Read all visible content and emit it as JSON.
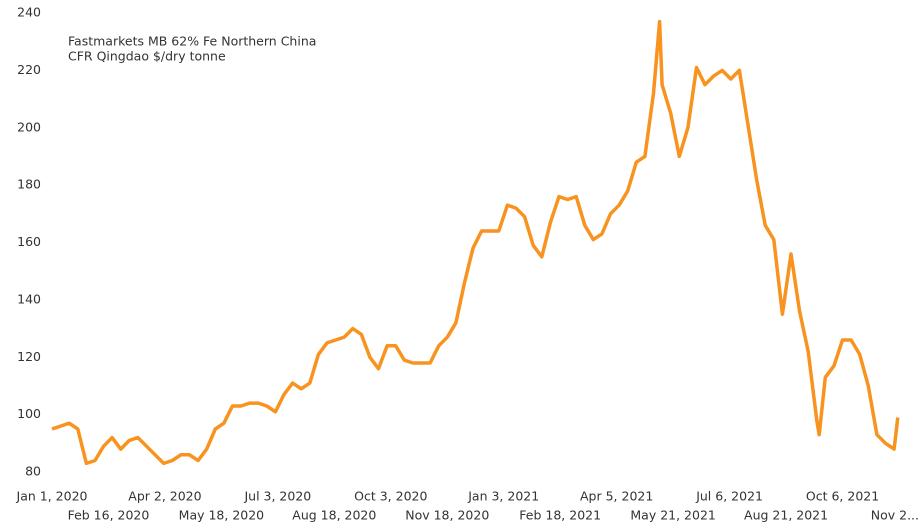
{
  "chart_data": {
    "type": "line",
    "annotation": [
      "Fastmarkets MB 62% Fe Northern China",
      "CFR Qingdao $/dry tonne"
    ],
    "x": [
      "2020-01-01",
      "2020-01-08",
      "2020-01-15",
      "2020-01-22",
      "2020-01-29",
      "2020-02-05",
      "2020-02-12",
      "2020-02-19",
      "2020-02-26",
      "2020-03-04",
      "2020-03-11",
      "2020-03-18",
      "2020-03-25",
      "2020-04-01",
      "2020-04-08",
      "2020-04-15",
      "2020-04-22",
      "2020-04-29",
      "2020-05-06",
      "2020-05-13",
      "2020-05-20",
      "2020-05-27",
      "2020-06-03",
      "2020-06-10",
      "2020-06-17",
      "2020-06-24",
      "2020-07-01",
      "2020-07-08",
      "2020-07-15",
      "2020-07-22",
      "2020-07-29",
      "2020-08-05",
      "2020-08-12",
      "2020-08-19",
      "2020-08-26",
      "2020-09-02",
      "2020-09-09",
      "2020-09-16",
      "2020-09-23",
      "2020-09-30",
      "2020-10-07",
      "2020-10-14",
      "2020-10-21",
      "2020-10-28",
      "2020-11-04",
      "2020-11-11",
      "2020-11-18",
      "2020-11-25",
      "2020-12-02",
      "2020-12-09",
      "2020-12-16",
      "2020-12-23",
      "2020-12-30",
      "2021-01-06",
      "2021-01-13",
      "2021-01-20",
      "2021-01-27",
      "2021-02-03",
      "2021-02-10",
      "2021-02-17",
      "2021-02-24",
      "2021-03-03",
      "2021-03-10",
      "2021-03-17",
      "2021-03-24",
      "2021-03-31",
      "2021-04-07",
      "2021-04-14",
      "2021-04-21",
      "2021-04-28",
      "2021-05-05",
      "2021-05-10",
      "2021-05-12",
      "2021-05-19",
      "2021-05-26",
      "2021-06-02",
      "2021-06-09",
      "2021-06-16",
      "2021-06-23",
      "2021-06-30",
      "2021-07-07",
      "2021-07-14",
      "2021-07-21",
      "2021-07-28",
      "2021-08-04",
      "2021-08-11",
      "2021-08-18",
      "2021-08-25",
      "2021-09-01",
      "2021-09-08",
      "2021-09-15",
      "2021-09-17",
      "2021-09-22",
      "2021-09-29",
      "2021-10-06",
      "2021-10-13",
      "2021-10-20",
      "2021-10-27",
      "2021-11-03",
      "2021-11-10",
      "2021-11-17",
      "2021-11-20"
    ],
    "series": [
      {
        "color": "#f7931e",
        "values": [
          95,
          96,
          97,
          95,
          83,
          84,
          89,
          92,
          88,
          91,
          92,
          89,
          86,
          83,
          84,
          86,
          86,
          84,
          88,
          95,
          97,
          103,
          103,
          104,
          104,
          103,
          101,
          107,
          111,
          109,
          111,
          121,
          125,
          126,
          127,
          130,
          128,
          120,
          116,
          124,
          124,
          119,
          118,
          118,
          118,
          124,
          127,
          132,
          146,
          158,
          164,
          164,
          164,
          173,
          172,
          169,
          159,
          155,
          167,
          176,
          175,
          176,
          166,
          161,
          163,
          170,
          173,
          178,
          188,
          190,
          212,
          237,
          215,
          205,
          190,
          200,
          221,
          215,
          218,
          220,
          217,
          220,
          201,
          182,
          166,
          161,
          135,
          156,
          136,
          122,
          98,
          93,
          113,
          117,
          126,
          126,
          121,
          110,
          93,
          90,
          88,
          99
        ]
      }
    ],
    "xlim": [
      "2020-01-01",
      "2021-11-21"
    ],
    "xticks": [
      {
        "value": "2020-01-01",
        "label": "Jan 1, 2020"
      },
      {
        "value": "2020-02-16",
        "label": "Feb 16, 2020"
      },
      {
        "value": "2020-04-02",
        "label": "Apr 2, 2020"
      },
      {
        "value": "2020-05-18",
        "label": "May 18, 2020"
      },
      {
        "value": "2020-07-03",
        "label": "Jul 3, 2020"
      },
      {
        "value": "2020-08-18",
        "label": "Aug 18, 2020"
      },
      {
        "value": "2020-10-03",
        "label": "Oct 3, 2020"
      },
      {
        "value": "2020-11-18",
        "label": "Nov 18, 2020"
      },
      {
        "value": "2021-01-03",
        "label": "Jan 3, 2021"
      },
      {
        "value": "2021-02-18",
        "label": "Feb 18, 2021"
      },
      {
        "value": "2021-04-05",
        "label": "Apr 5, 2021"
      },
      {
        "value": "2021-05-21",
        "label": "May 21, 2021"
      },
      {
        "value": "2021-07-06",
        "label": "Jul 6, 2021"
      },
      {
        "value": "2021-08-21",
        "label": "Aug 21, 2021"
      },
      {
        "value": "2021-10-06",
        "label": "Oct 6, 2021"
      },
      {
        "value": "2021-11-21",
        "label": "Nov 2..."
      }
    ],
    "ylim": [
      80,
      240
    ],
    "yticks": [
      80,
      100,
      120,
      140,
      160,
      180,
      200,
      220,
      240
    ],
    "grid": false
  }
}
